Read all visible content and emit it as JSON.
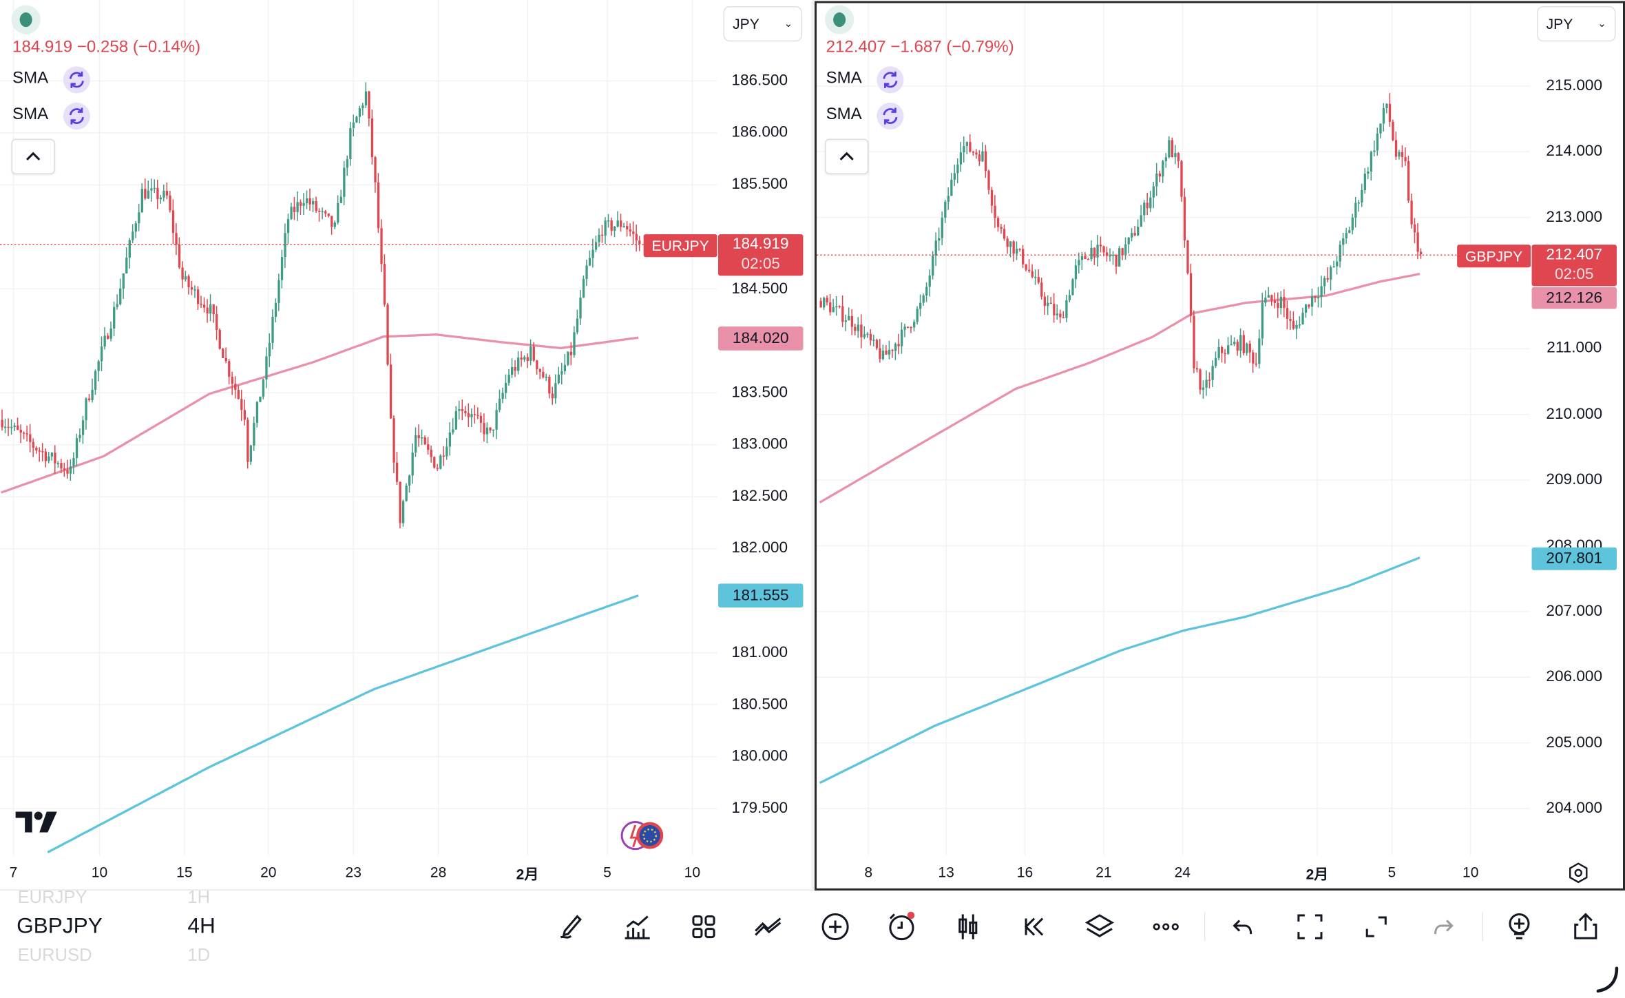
{
  "left_chart": {
    "symbol": "EURJPY",
    "quote": "184.919 −0.258 (−0.14%)",
    "indicators": [
      "SMA",
      "SMA"
    ],
    "currency": "JPY",
    "price_tag": "EURJPY",
    "last_price": "184.919",
    "countdown": "02:05",
    "sma_pink_value": "184.020",
    "sma_cyan_value": "181.555",
    "y_ticks": [
      "186.500",
      "186.000",
      "185.500",
      "184.500",
      "183.500",
      "183.000",
      "182.500",
      "182.000",
      "181.000",
      "180.500",
      "180.000",
      "179.500"
    ],
    "x_ticks": [
      "7",
      "10",
      "15",
      "20",
      "23",
      "28",
      "2月",
      "5",
      "10"
    ]
  },
  "right_chart": {
    "symbol": "GBPJPY",
    "quote": "212.407 −1.687 (−0.79%)",
    "indicators": [
      "SMA",
      "SMA"
    ],
    "currency": "JPY",
    "price_tag": "GBPJPY",
    "last_price": "212.407",
    "countdown": "02:05",
    "sma_pink_value": "212.126",
    "sma_cyan_value": "207.801",
    "y_ticks": [
      "215.000",
      "214.000",
      "213.000",
      "211.000",
      "210.000",
      "209.000",
      "208.000",
      "207.000",
      "206.000",
      "205.000",
      "204.000"
    ],
    "x_ticks": [
      "8",
      "13",
      "16",
      "21",
      "24",
      "2月",
      "5",
      "10"
    ]
  },
  "watchlist": [
    {
      "symbol": "EURJPY",
      "interval": "1H",
      "active": false
    },
    {
      "symbol": "GBPJPY",
      "interval": "4H",
      "active": true
    },
    {
      "symbol": "EURUSD",
      "interval": "1D",
      "active": false
    }
  ],
  "toolbar_icons": [
    "draw-icon",
    "indicators-icon",
    "layout-grid-icon",
    "compare-icon",
    "add-icon",
    "alert-icon",
    "chart-type-icon",
    "replay-icon",
    "layers-icon",
    "more-icon",
    "undo-icon",
    "fullscreen-icon",
    "expand-icon",
    "redo-icon",
    "add-watchlist-icon",
    "share-icon"
  ],
  "colors": {
    "up": "#3f9b84",
    "down": "#e0464f",
    "sma_pink": "#e891a8",
    "sma_cyan": "#5ec4dc",
    "price_red": "#e0464f"
  },
  "chart_data": [
    {
      "type": "candlestick",
      "symbol": "EURJPY",
      "ylim": [
        179.3,
        186.9
      ],
      "close_keypoints": [
        [
          0,
          183.24
        ],
        [
          10,
          182.99
        ],
        [
          22,
          182.74
        ],
        [
          27,
          183.39
        ],
        [
          37,
          184.39
        ],
        [
          45,
          185.43
        ],
        [
          53,
          185.38
        ],
        [
          58,
          184.59
        ],
        [
          67,
          184.29
        ],
        [
          72,
          183.79
        ],
        [
          78,
          183.29
        ],
        [
          79,
          182.89
        ],
        [
          85,
          183.79
        ],
        [
          92,
          185.18
        ],
        [
          97,
          185.38
        ],
        [
          107,
          185.08
        ],
        [
          112,
          185.98
        ],
        [
          117,
          186.38
        ],
        [
          120,
          185.48
        ],
        [
          123,
          184.29
        ],
        [
          125,
          183.19
        ],
        [
          128,
          182.29
        ],
        [
          133,
          183.09
        ],
        [
          140,
          182.79
        ],
        [
          147,
          183.39
        ],
        [
          157,
          183.09
        ],
        [
          163,
          183.69
        ],
        [
          170,
          183.89
        ],
        [
          177,
          183.49
        ],
        [
          183,
          183.89
        ],
        [
          188,
          184.69
        ],
        [
          193,
          185.08
        ],
        [
          200,
          185.13
        ],
        [
          205,
          184.93
        ]
      ],
      "sma_pink": [
        [
          0,
          182.54
        ],
        [
          33,
          182.89
        ],
        [
          67,
          183.49
        ],
        [
          100,
          183.79
        ],
        [
          123,
          184.04
        ],
        [
          140,
          184.06
        ],
        [
          160,
          183.99
        ],
        [
          180,
          183.93
        ],
        [
          205,
          184.03
        ]
      ],
      "sma_cyan": [
        [
          15,
          179.08
        ],
        [
          67,
          179.9
        ],
        [
          120,
          180.65
        ],
        [
          167,
          181.15
        ],
        [
          205,
          181.55
        ]
      ]
    },
    {
      "type": "candlestick",
      "symbol": "GBPJPY",
      "ylim": [
        203.3,
        215.3
      ],
      "close_keypoints": [
        [
          0,
          211.73
        ],
        [
          10,
          211.42
        ],
        [
          20,
          210.86
        ],
        [
          27,
          211.26
        ],
        [
          33,
          211.73
        ],
        [
          40,
          213.15
        ],
        [
          45,
          214.1
        ],
        [
          52,
          213.94
        ],
        [
          57,
          212.84
        ],
        [
          65,
          212.36
        ],
        [
          72,
          211.73
        ],
        [
          77,
          211.42
        ],
        [
          82,
          212.21
        ],
        [
          87,
          212.52
        ],
        [
          95,
          212.36
        ],
        [
          100,
          212.68
        ],
        [
          107,
          213.47
        ],
        [
          112,
          214.1
        ],
        [
          115,
          213.78
        ],
        [
          117,
          212.68
        ],
        [
          120,
          210.79
        ],
        [
          123,
          210.31
        ],
        [
          128,
          210.94
        ],
        [
          135,
          211.1
        ],
        [
          140,
          210.79
        ],
        [
          142,
          211.73
        ],
        [
          148,
          211.73
        ],
        [
          152,
          211.26
        ],
        [
          157,
          211.73
        ],
        [
          163,
          212.05
        ],
        [
          170,
          212.84
        ],
        [
          177,
          213.94
        ],
        [
          182,
          214.73
        ],
        [
          185,
          213.94
        ],
        [
          188,
          213.78
        ],
        [
          190,
          212.84
        ],
        [
          193,
          212.44
        ]
      ],
      "sma_pink": [
        [
          0,
          208.66
        ],
        [
          37,
          209.68
        ],
        [
          63,
          210.39
        ],
        [
          87,
          210.79
        ],
        [
          107,
          211.18
        ],
        [
          120,
          211.54
        ],
        [
          137,
          211.7
        ],
        [
          163,
          211.81
        ],
        [
          180,
          212.02
        ],
        [
          193,
          212.14
        ]
      ],
      "sma_cyan": [
        [
          0,
          204.39
        ],
        [
          37,
          205.26
        ],
        [
          70,
          205.89
        ],
        [
          97,
          206.41
        ],
        [
          117,
          206.71
        ],
        [
          137,
          206.92
        ],
        [
          170,
          207.39
        ],
        [
          193,
          207.82
        ]
      ]
    }
  ]
}
